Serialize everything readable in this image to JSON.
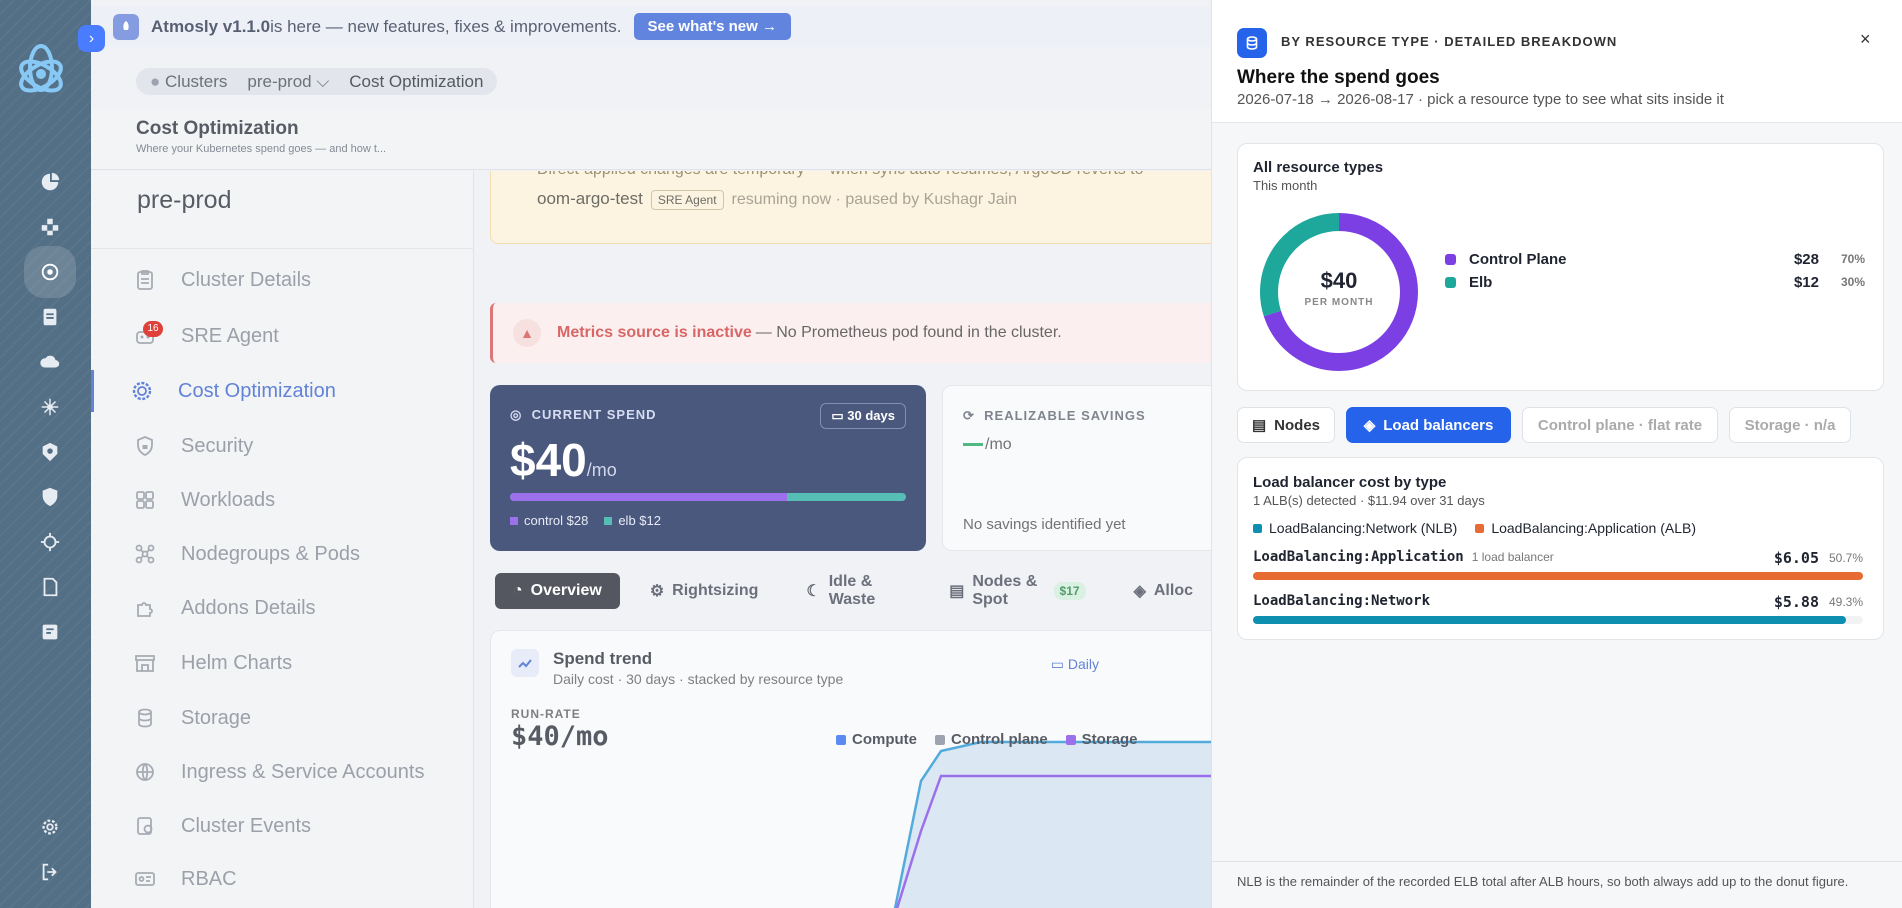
{
  "banner": {
    "version_name": "Atmosly v1.1.0",
    "version_text": " is here — new features, fixes & improvements.",
    "cta": "See what's new →"
  },
  "breadcrumb": {
    "clusters": "Clusters",
    "env": "pre-prod ⌵",
    "current": "Cost Optimization"
  },
  "page": {
    "title": "Cost Optimization",
    "subtitle": "Where your Kubernetes spend goes — and how t..."
  },
  "cluster_name": "pre-prod",
  "nav": {
    "items": [
      {
        "label": "Cluster Details",
        "icon": "clipboard-icon"
      },
      {
        "label": "SRE Agent",
        "icon": "robot-icon",
        "badge": "16"
      },
      {
        "label": "Cost Optimization",
        "icon": "gear-dollar-icon",
        "active": true
      },
      {
        "label": "Security",
        "icon": "shield-lock-icon"
      },
      {
        "label": "Workloads",
        "icon": "grid-icon"
      },
      {
        "label": "Nodegroups & Pods",
        "icon": "network-icon"
      },
      {
        "label": "Addons Details",
        "icon": "puzzle-icon"
      },
      {
        "label": "Helm Charts",
        "icon": "store-icon"
      },
      {
        "label": "Storage",
        "icon": "database-icon"
      },
      {
        "label": "Ingress & Service Accounts",
        "icon": "globe-icon"
      },
      {
        "label": "Cluster Events",
        "icon": "events-icon"
      },
      {
        "label": "RBAC",
        "icon": "id-card-icon"
      }
    ]
  },
  "warning": {
    "line1": "Direct-applied changes are temporary — when sync auto-resumes, ArgoCD reverts to",
    "app": "oom-argo-test",
    "tag": "SRE Agent",
    "status": "resuming now · paused by Kushagr Jain"
  },
  "error": {
    "title": "Metrics source is inactive",
    "text": "— No Prometheus pod found in the cluster."
  },
  "current_spend": {
    "label": "CURRENT SPEND",
    "period": "30 days",
    "amount": "$40",
    "unit": "/mo",
    "control_fraction": 0.7,
    "legend_control": "control $28",
    "legend_elb": "elb $12",
    "colors": {
      "control": "#7b3fe4",
      "elb": "#1ea89c"
    }
  },
  "savings": {
    "label": "REALIZABLE SAVINGS",
    "unit": "/mo",
    "empty": "No savings identified yet"
  },
  "tabs": [
    {
      "label": "Overview",
      "icon": "gauge-icon",
      "active": true
    },
    {
      "label": "Rightsizing",
      "icon": "sliders-icon"
    },
    {
      "label": "Idle & Waste",
      "icon": "moon-icon"
    },
    {
      "label": "Nodes & Spot",
      "icon": "server-icon",
      "pill": "$17"
    },
    {
      "label": "Alloc",
      "icon": "layers-icon"
    }
  ],
  "trend": {
    "title": "Spend trend",
    "subtitle": "Daily cost · 30 days · stacked by resource type",
    "granularity": "Daily",
    "runrate_label": "RUN-RATE",
    "runrate_value": "$40/mo",
    "legend": [
      {
        "name": "Compute",
        "color": "#2563eb"
      },
      {
        "name": "Control plane",
        "color": "#7d8594"
      },
      {
        "name": "Storage",
        "color": "#7b3fe4"
      }
    ]
  },
  "drawer": {
    "kicker": "BY RESOURCE TYPE · DETAILED BREAKDOWN",
    "close": "×",
    "title": "Where the spend goes",
    "subtitle": "2026-07-18 → 2026-08-17 · pick a resource type to see what sits inside it",
    "summary": {
      "title": "All resource types",
      "subtitle": "This month",
      "total": "$40",
      "total_label": "PER MONTH",
      "slices": [
        {
          "name": "Control Plane",
          "value": "$28",
          "pct": "70%",
          "fraction": 0.7,
          "color": "#7b3fe4"
        },
        {
          "name": "Elb",
          "value": "$12",
          "pct": "30%",
          "fraction": 0.3,
          "color": "#1ea89c"
        }
      ]
    },
    "tabs": [
      {
        "label": "Nodes",
        "icon": "server-icon",
        "state": "normal"
      },
      {
        "label": "Load balancers",
        "icon": "layers-icon",
        "state": "active"
      },
      {
        "label": "Control plane · flat rate",
        "state": "disabled"
      },
      {
        "label": "Storage · n/a",
        "state": "disabled"
      }
    ],
    "lb": {
      "title": "Load balancer cost by type",
      "subtitle": "1 ALB(s) detected · $11.94 over 31 days",
      "legend": [
        {
          "name": "LoadBalancing:Network (NLB)",
          "color": "#0e8fb0"
        },
        {
          "name": "LoadBalancing:Application (ALB)",
          "color": "#e96b34"
        }
      ],
      "rows": [
        {
          "name": "LoadBalancing:Application",
          "sub": "1 load balancer",
          "value": "$6.05",
          "pct": "50.7%",
          "fraction": 1.0,
          "color": "#e96b34"
        },
        {
          "name": "LoadBalancing:Network",
          "sub": "",
          "value": "$5.88",
          "pct": "49.3%",
          "fraction": 0.972,
          "color": "#0e8fb0"
        }
      ]
    },
    "footer": "NLB is the remainder of the recorded ELB total after ALB hours, so both always add up to the donut figure."
  }
}
